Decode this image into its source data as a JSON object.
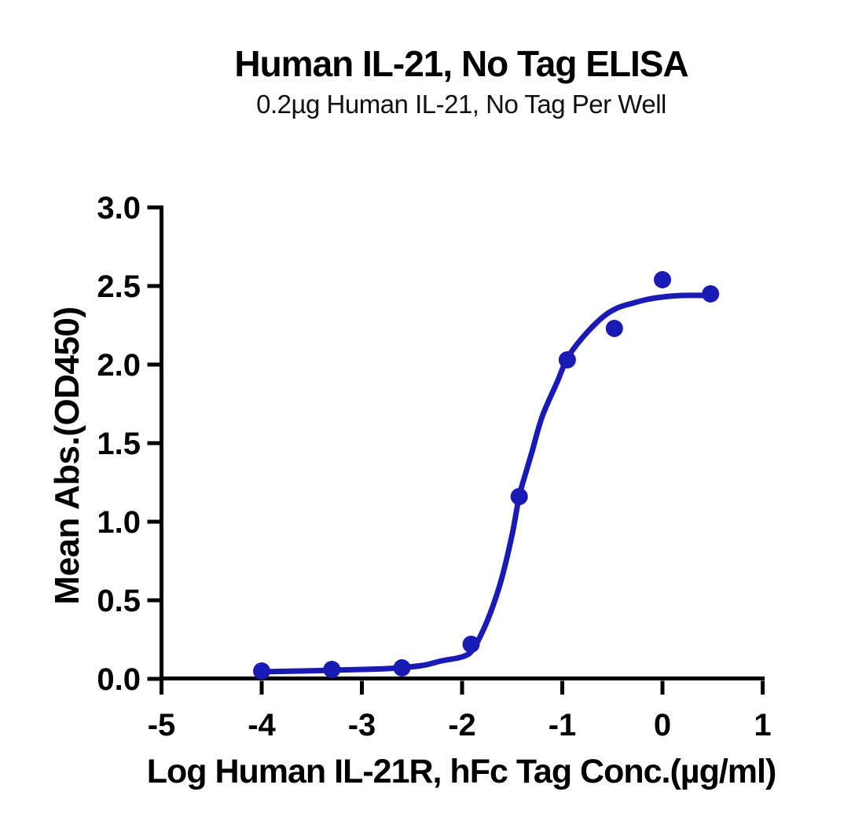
{
  "page": {
    "background": "#ffffff"
  },
  "chart_data": {
    "type": "scatter",
    "title": "Human IL-21, No Tag ELISA",
    "subtitle": "0.2µg Human IL-21, No Tag Per Well",
    "xlabel": "Log Human IL-21R, hFc Tag Conc.(µg/ml)",
    "ylabel": "Mean Abs.(OD450)",
    "xlim": [
      -5,
      1
    ],
    "ylim": [
      0,
      3
    ],
    "x_ticks": [
      -5,
      -4,
      -3,
      -2,
      -1,
      0,
      1
    ],
    "x_tick_labels": [
      "-5",
      "-4",
      "-3",
      "-2",
      "-1",
      "0",
      "1"
    ],
    "y_ticks": [
      0,
      0.5,
      1,
      1.5,
      2,
      2.5,
      3
    ],
    "y_tick_labels": [
      "0.0",
      "0.5",
      "1.0",
      "1.5",
      "2.0",
      "2.5",
      "3.0"
    ],
    "grid": false,
    "legend_position": "none",
    "colors": {
      "series": "#1A1AB4",
      "axis": "#000000",
      "text": "#000000"
    },
    "series": [
      {
        "name": "Human IL-21R, hFc Tag",
        "marker": "circle",
        "points": [
          {
            "x": -4.0,
            "y": 0.05
          },
          {
            "x": -3.3,
            "y": 0.06
          },
          {
            "x": -2.6,
            "y": 0.07
          },
          {
            "x": -1.91,
            "y": 0.22
          },
          {
            "x": -1.43,
            "y": 1.16
          },
          {
            "x": -0.95,
            "y": 2.03
          },
          {
            "x": -0.48,
            "y": 2.23
          },
          {
            "x": 0.0,
            "y": 2.54
          },
          {
            "x": 0.48,
            "y": 2.45
          }
        ],
        "fit_curve": [
          [
            -4.0,
            0.045
          ],
          [
            -3.6,
            0.05
          ],
          [
            -3.3,
            0.055
          ],
          [
            -3.0,
            0.06
          ],
          [
            -2.7,
            0.067
          ],
          [
            -2.4,
            0.085
          ],
          [
            -2.2,
            0.115
          ],
          [
            -2.0,
            0.14
          ],
          [
            -1.9,
            0.18
          ],
          [
            -1.8,
            0.295
          ],
          [
            -1.7,
            0.45
          ],
          [
            -1.6,
            0.65
          ],
          [
            -1.5,
            0.92
          ],
          [
            -1.43,
            1.16
          ],
          [
            -1.36,
            1.32
          ],
          [
            -1.3,
            1.45
          ],
          [
            -1.2,
            1.67
          ],
          [
            -1.05,
            1.89
          ],
          [
            -0.95,
            2.04
          ],
          [
            -0.8,
            2.17
          ],
          [
            -0.6,
            2.3
          ],
          [
            -0.45,
            2.36
          ],
          [
            -0.3,
            2.39
          ],
          [
            -0.15,
            2.415
          ],
          [
            0.0,
            2.43
          ],
          [
            0.2,
            2.44
          ],
          [
            0.48,
            2.44
          ]
        ]
      }
    ]
  }
}
